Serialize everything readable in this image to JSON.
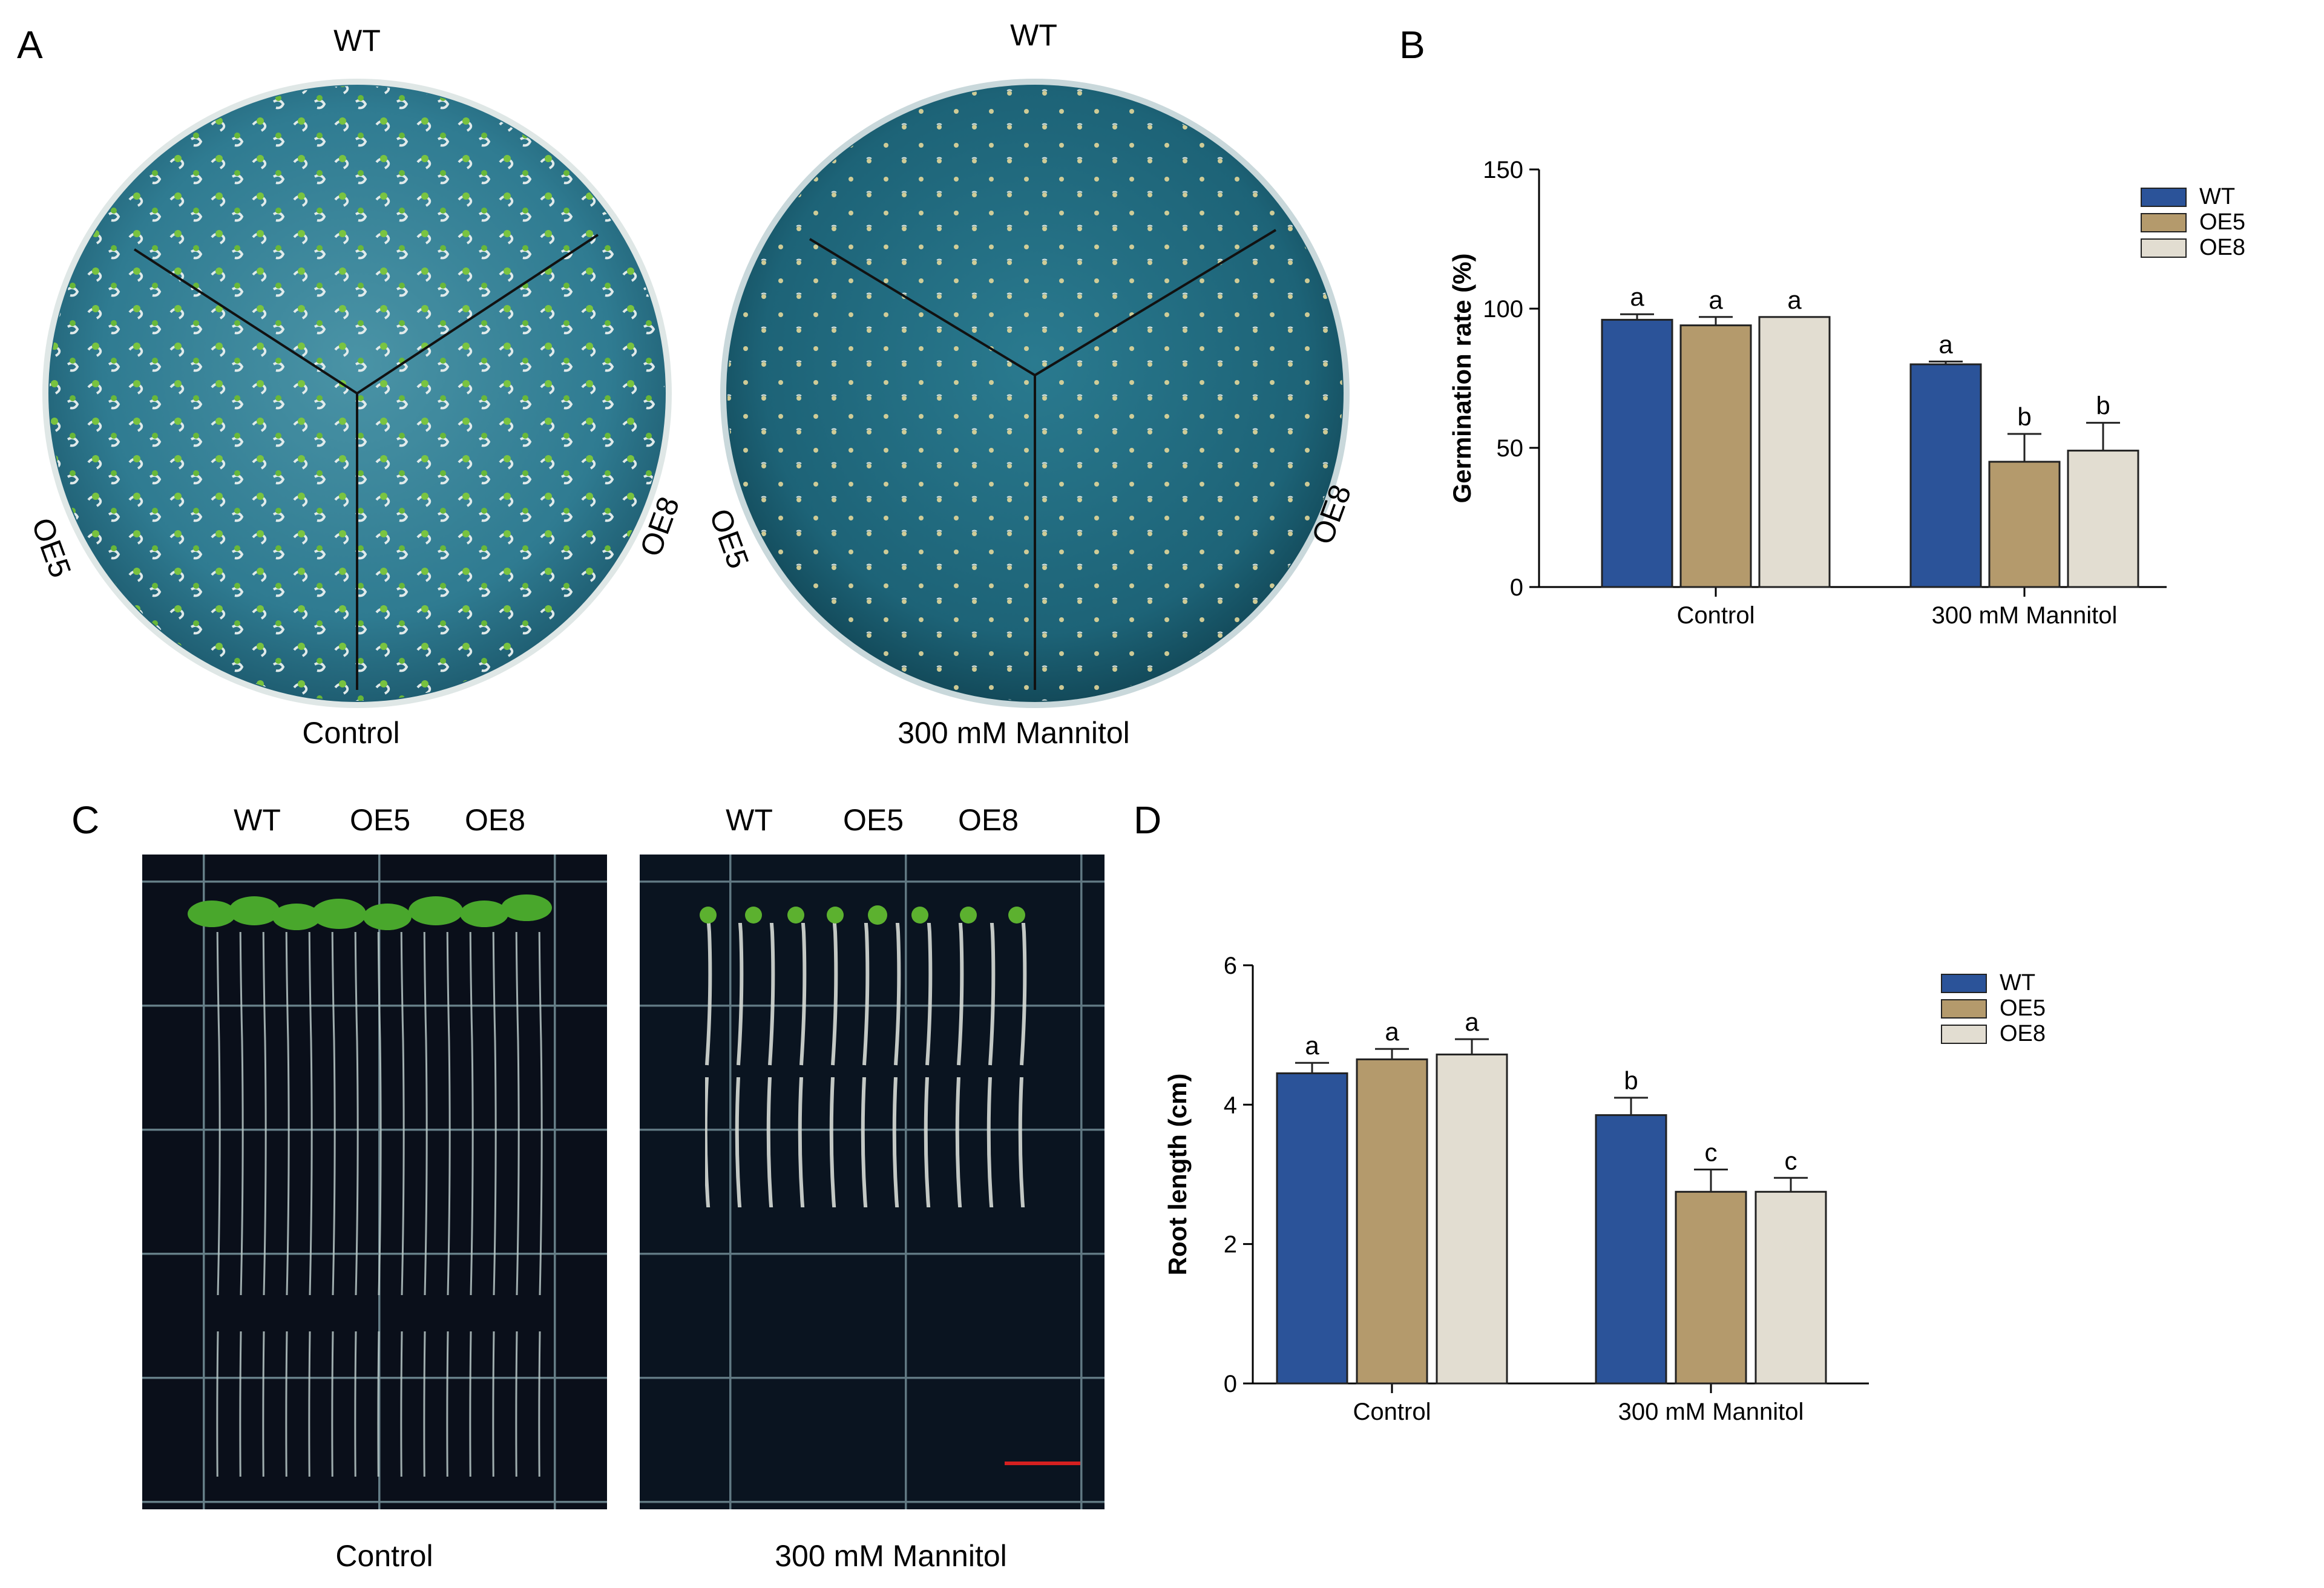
{
  "panel_labels": {
    "a": "A",
    "b": "B",
    "c": "C",
    "d": "D"
  },
  "panel_a": {
    "control_plate": {
      "top": "WT",
      "left": "OE5",
      "right": "OE8",
      "caption": "Control"
    },
    "mannitol_plate": {
      "top": "WT",
      "left": "OE5",
      "right": "OE8",
      "caption": "300 mM Mannitol"
    }
  },
  "panel_c": {
    "control_photo": {
      "labels": [
        "WT",
        "OE5",
        "OE8"
      ],
      "caption": "Control"
    },
    "mannitol_photo": {
      "labels": [
        "WT",
        "OE5",
        "OE8"
      ],
      "caption": "300 mM Mannitol"
    }
  },
  "colors": {
    "WT": "#2b5399",
    "OE5": "#b49a6c",
    "OE8": "#e2ddd1",
    "scale_bar": "#d62020"
  },
  "chart_data": [
    {
      "id": "B",
      "type": "bar",
      "ylabel": "Germination rate (%)",
      "xlabel": "",
      "ylim": [
        0,
        150
      ],
      "yticks": [
        0,
        50,
        100,
        150
      ],
      "categories": [
        "Control",
        "300 mM Mannitol"
      ],
      "legend_position": "top-right",
      "series": [
        {
          "name": "WT",
          "values": [
            96,
            80
          ],
          "errors": [
            2,
            1
          ],
          "letters": [
            "a",
            "a"
          ]
        },
        {
          "name": "OE5",
          "values": [
            94,
            45
          ],
          "errors": [
            3,
            10
          ],
          "letters": [
            "a",
            "b"
          ]
        },
        {
          "name": "OE8",
          "values": [
            97,
            49
          ],
          "errors": [
            0,
            10
          ],
          "letters": [
            "a",
            "b"
          ]
        }
      ]
    },
    {
      "id": "D",
      "type": "bar",
      "ylabel": "Root length (cm)",
      "xlabel": "",
      "ylim": [
        0,
        6
      ],
      "yticks": [
        0,
        2,
        4,
        6
      ],
      "categories": [
        "Control",
        "300 mM Mannitol"
      ],
      "legend_position": "top-right",
      "series": [
        {
          "name": "WT",
          "values": [
            4.45,
            3.85
          ],
          "errors": [
            0.15,
            0.25
          ],
          "letters": [
            "a",
            "b"
          ]
        },
        {
          "name": "OE5",
          "values": [
            4.65,
            2.75
          ],
          "errors": [
            0.15,
            0.32
          ],
          "letters": [
            "a",
            "c"
          ]
        },
        {
          "name": "OE8",
          "values": [
            4.72,
            2.75
          ],
          "errors": [
            0.22,
            0.2
          ],
          "letters": [
            "a",
            "c"
          ]
        }
      ]
    }
  ]
}
